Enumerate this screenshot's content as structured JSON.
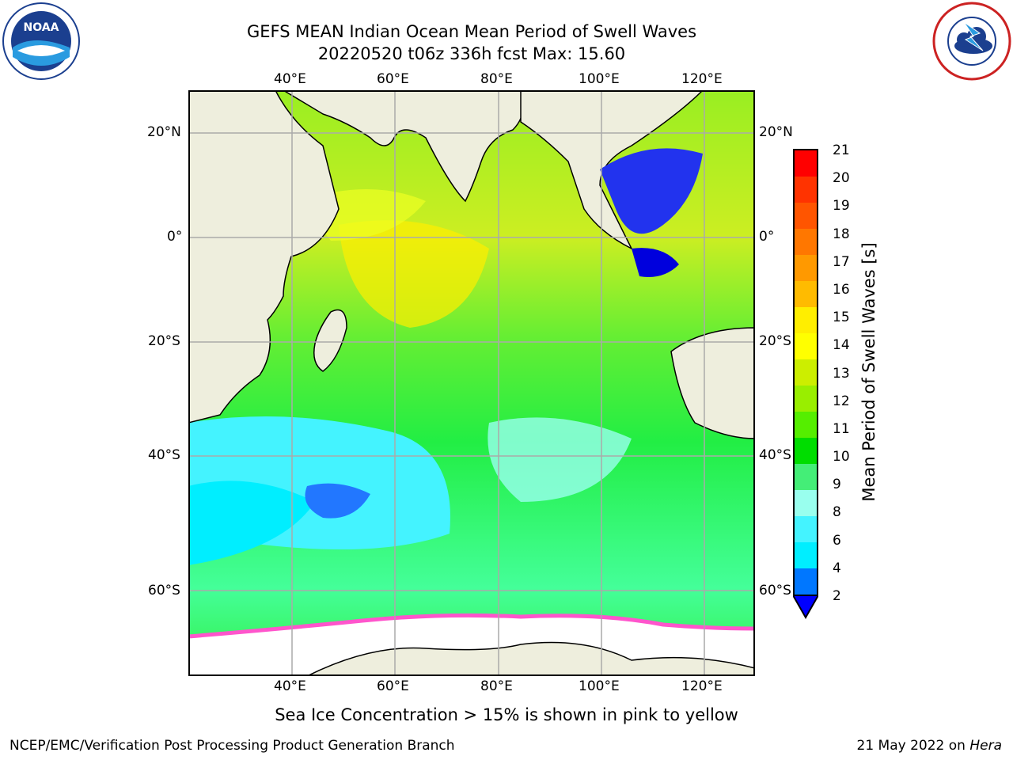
{
  "title": {
    "line1": "GEFS MEAN Indian Ocean Mean Period of Swell Waves",
    "line2": "20220520 t06z 336h fcst   Max: 15.60"
  },
  "logos": {
    "left": "noa-logo-icon",
    "right": "nws-logo-icon"
  },
  "axes": {
    "top_lon": [
      "40°E",
      "60°E",
      "80°E",
      "100°E",
      "120°E"
    ],
    "bottom_lon": [
      "40°E",
      "60°E",
      "80°E",
      "100°E",
      "120°E"
    ],
    "left_lat": [
      "20°N",
      "0°",
      "20°S",
      "40°S",
      "60°S"
    ],
    "right_lat": [
      "20°N",
      "0°",
      "20°S",
      "40°S",
      "60°S"
    ]
  },
  "colorbar": {
    "label": "Mean Period of Swell Waves [s]",
    "ticks": [
      "21",
      "20",
      "19",
      "18",
      "17",
      "16",
      "15",
      "14",
      "13",
      "12",
      "11",
      "10",
      "9",
      "8",
      "6",
      "4",
      "2"
    ],
    "colors": [
      "#ff0000",
      "#ff3300",
      "#ff5500",
      "#ff7700",
      "#ff9900",
      "#ffbb00",
      "#ffee00",
      "#ffff00",
      "#ccee00",
      "#99ee00",
      "#55ee00",
      "#00dd00",
      "#44ee77",
      "#99ffee",
      "#44f3ff",
      "#00eeff",
      "#0077ff"
    ],
    "arrow_color": "#0000ff"
  },
  "bottom_note": "Sea Ice Concentration > 15% is shown in pink to yellow",
  "footer": {
    "left": "NCEP/EMC/Verification Post Processing Product Generation Branch",
    "right_prefix": "21 May 2022 on ",
    "right_emph": "Hera"
  }
}
